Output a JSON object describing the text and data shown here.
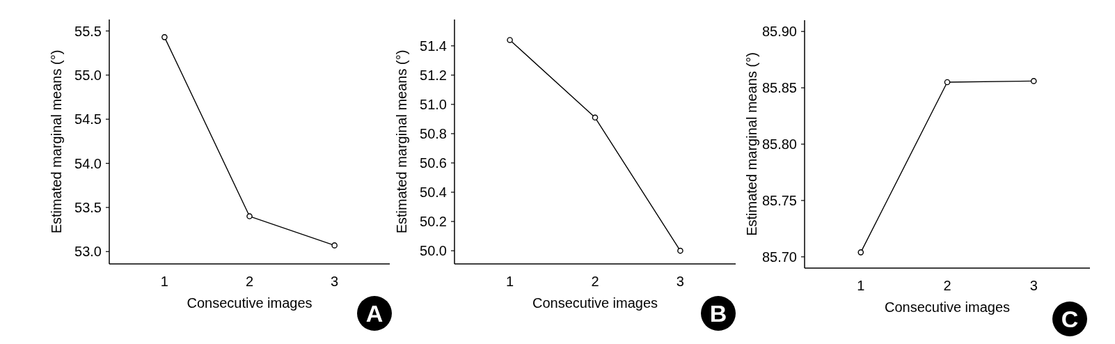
{
  "chart_data": [
    {
      "type": "line",
      "title": "A",
      "xlabel": "Consecutive images",
      "ylabel": "Estimated marginal means (°)",
      "x": [
        1,
        2,
        3
      ],
      "series": [
        {
          "color": "#000000",
          "values": [
            55.43,
            53.4,
            53.07
          ]
        }
      ],
      "xlim": [
        0.35,
        3.65
      ],
      "xticks": [
        1,
        2,
        3
      ],
      "ylim": [
        52.86,
        55.63
      ],
      "yticks": [
        {
          "value": 53,
          "label": "53.0"
        },
        53.5,
        {
          "value": 54,
          "label": "54.0"
        },
        54.5,
        {
          "value": 55,
          "label": "55.0"
        },
        55.5
      ],
      "marker": "circle",
      "line_style": "solid"
    },
    {
      "type": "line",
      "title": "B",
      "xlabel": "Consecutive images",
      "ylabel": "Estimated marginal means (°)",
      "x": [
        1,
        2,
        3
      ],
      "series": [
        {
          "color": "#000000",
          "values": [
            51.44,
            50.91,
            50.0
          ]
        }
      ],
      "xlim": [
        0.35,
        3.65
      ],
      "xticks": [
        1,
        2,
        3
      ],
      "ylim": [
        49.91,
        51.58
      ],
      "yticks": [
        {
          "value": 50,
          "label": "50.0"
        },
        50.2,
        50.4,
        50.6,
        50.8,
        {
          "value": 51,
          "label": "51.0"
        },
        51.2,
        51.4
      ],
      "marker": "circle",
      "line_style": "solid"
    },
    {
      "type": "line",
      "title": "C",
      "xlabel": "Consecutive images",
      "ylabel": "Estimated marginal means (°)",
      "x": [
        1,
        2,
        3
      ],
      "series": [
        {
          "color": "#000000",
          "values": [
            85.704,
            85.855,
            85.856
          ]
        }
      ],
      "xlim": [
        0.35,
        3.65
      ],
      "xticks": [
        1,
        2,
        3
      ],
      "ylim": [
        85.69,
        85.91
      ],
      "yticks": [
        {
          "value": 85.7,
          "label": "85.70"
        },
        85.75,
        {
          "value": 85.8,
          "label": "85.80"
        },
        85.85,
        {
          "value": 85.9,
          "label": "85.90"
        }
      ],
      "marker": "circle",
      "line_style": "solid"
    }
  ]
}
